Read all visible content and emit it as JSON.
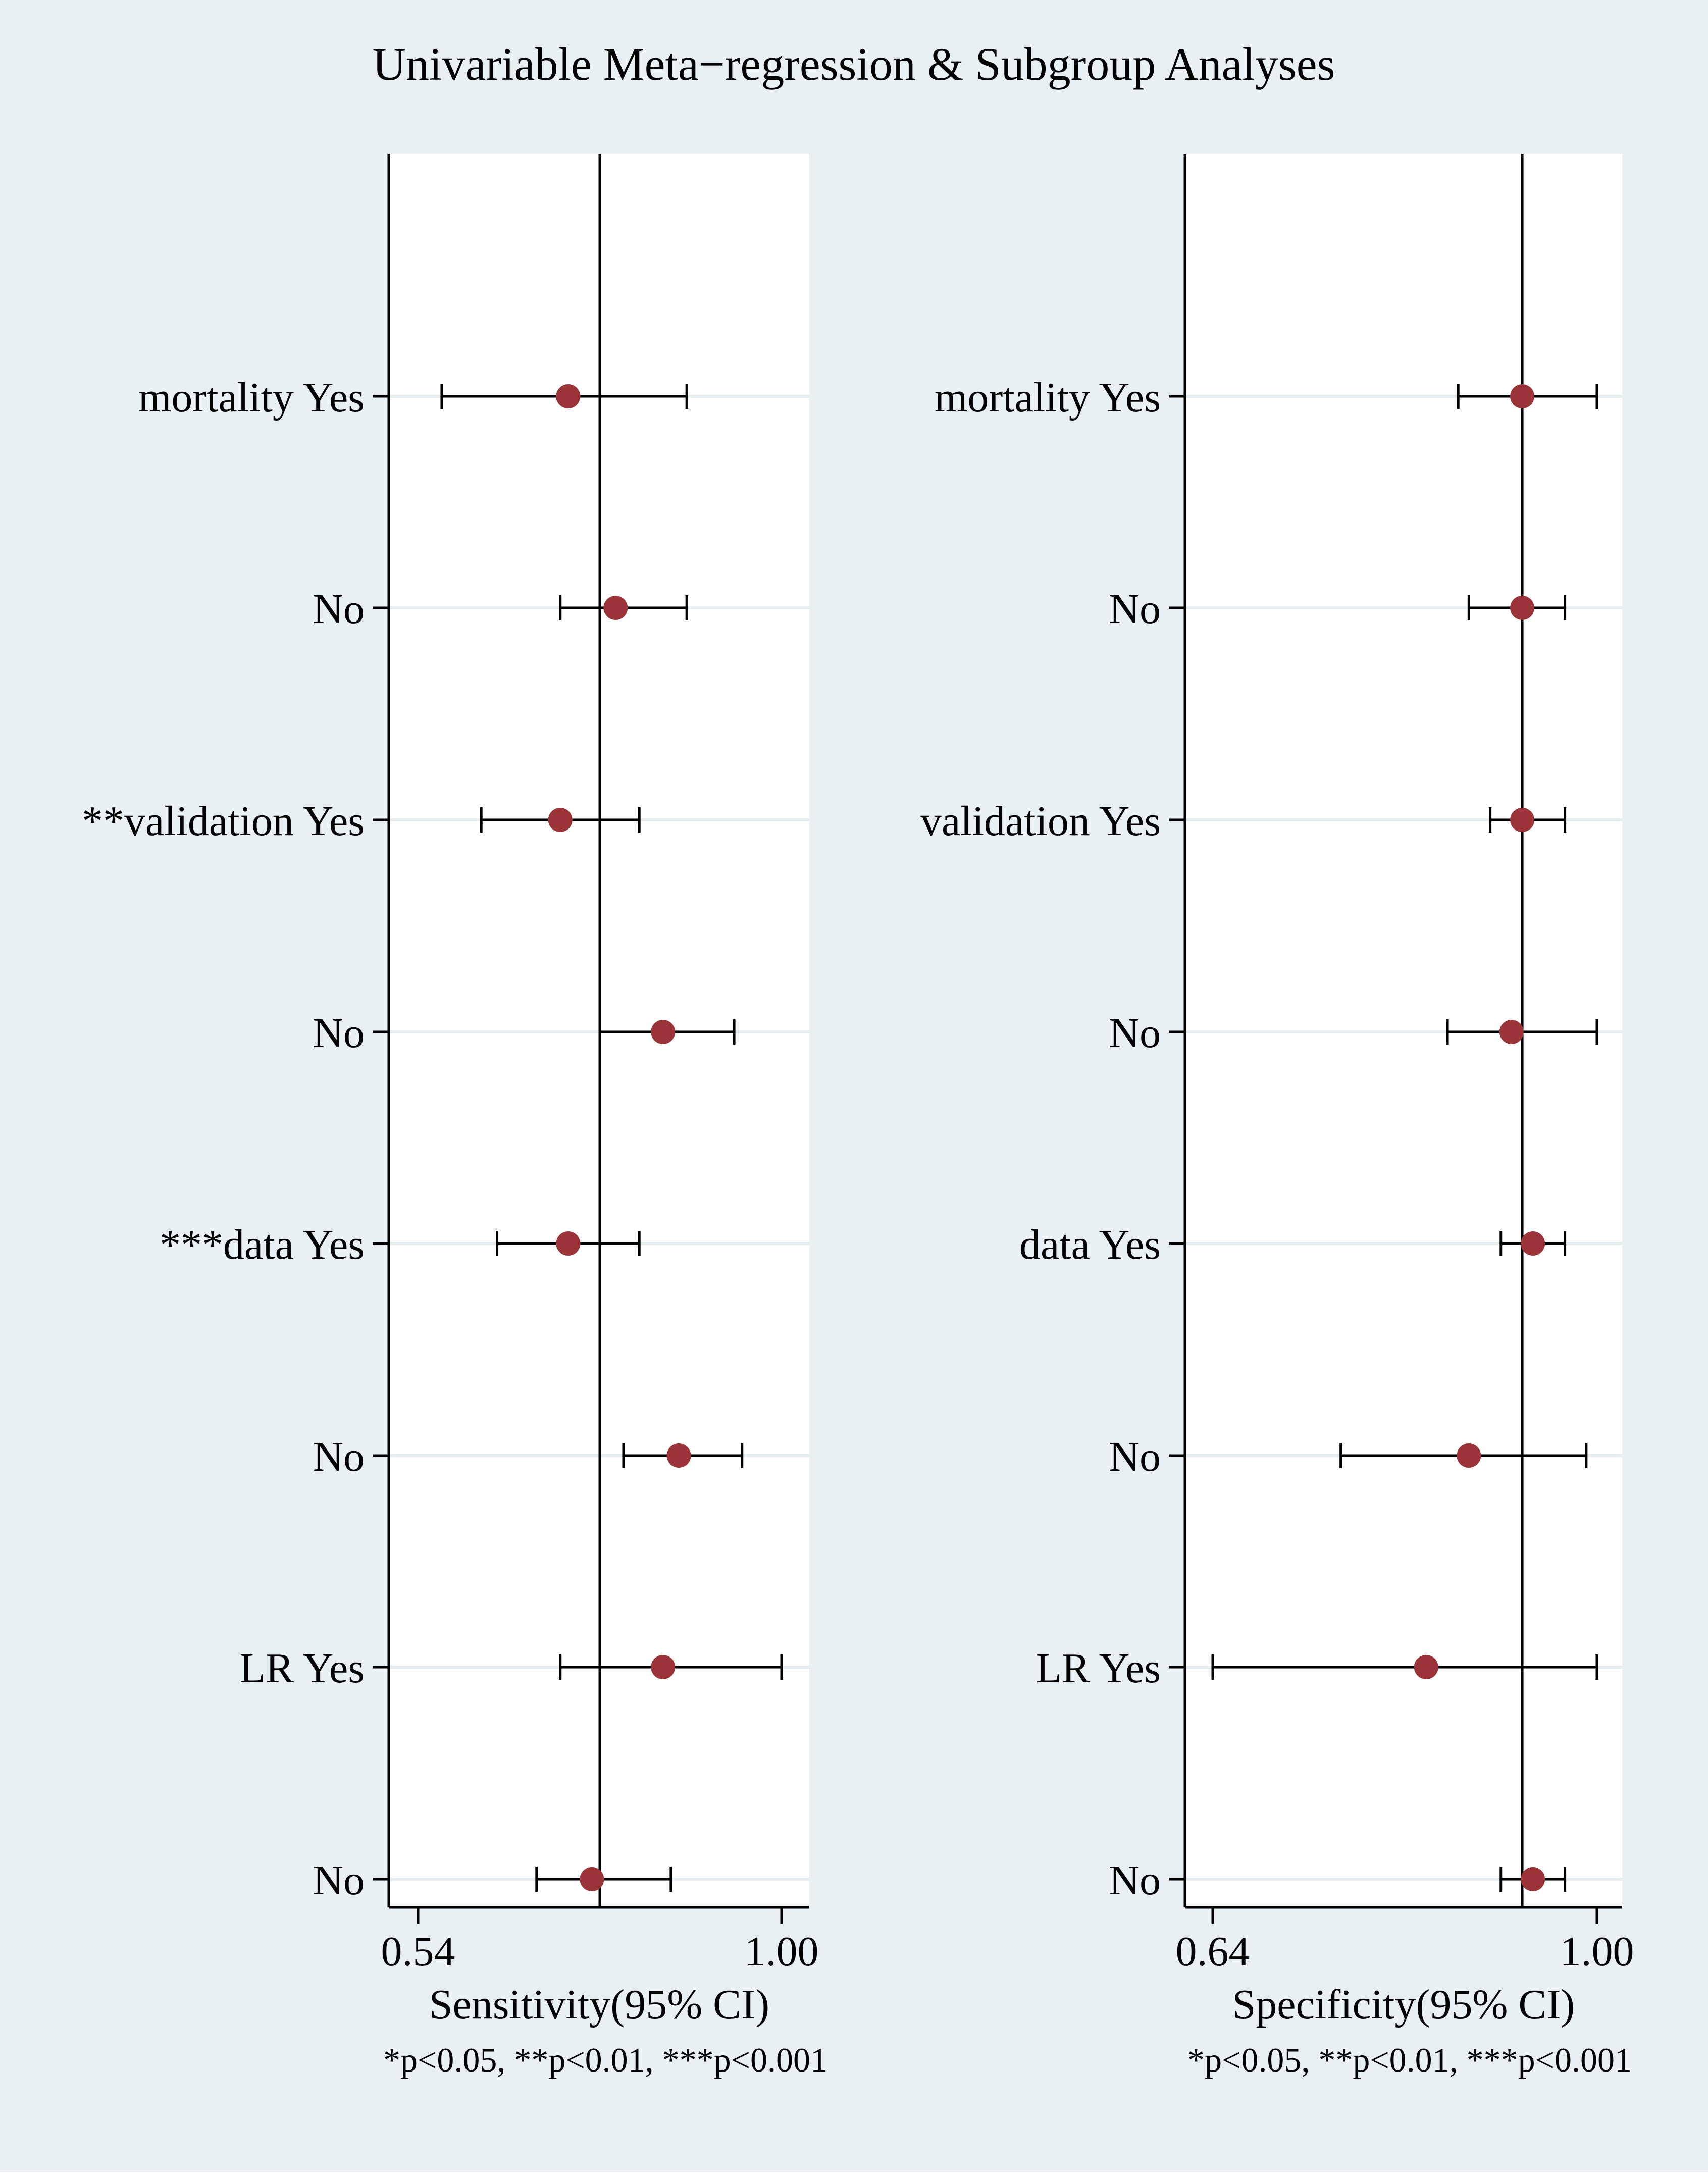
{
  "title": "Univariable Meta−regression & Subgroup Analyses",
  "colors": {
    "outer_background": "#e8f0f3",
    "plot_background": "#ffffff",
    "marker": "#9a3438",
    "gridline": "#e6eef1",
    "line": "#000000"
  },
  "chart_data": [
    {
      "type": "forest",
      "xlabel": "Sensitivity(95% CI)",
      "footnote": "*p<0.05, **p<0.01, ***p<0.001",
      "xlim": [
        0.54,
        1.0
      ],
      "tick_labels": [
        "0.54",
        "1.00"
      ],
      "reference_line": 0.77,
      "grid": "horizontal",
      "rows": [
        {
          "label": "mortality Yes",
          "estimate": 0.73,
          "lower": 0.57,
          "upper": 0.88
        },
        {
          "label": "No",
          "estimate": 0.79,
          "lower": 0.72,
          "upper": 0.88
        },
        {
          "label": "**validation Yes",
          "estimate": 0.72,
          "lower": 0.62,
          "upper": 0.82
        },
        {
          "label": "No",
          "estimate": 0.85,
          "lower": 0.77,
          "upper": 0.94
        },
        {
          "label": "***data Yes",
          "estimate": 0.73,
          "lower": 0.64,
          "upper": 0.82
        },
        {
          "label": "No",
          "estimate": 0.87,
          "lower": 0.8,
          "upper": 0.95
        },
        {
          "label": "LR Yes",
          "estimate": 0.85,
          "lower": 0.72,
          "upper": 1.0
        },
        {
          "label": "No",
          "estimate": 0.76,
          "lower": 0.69,
          "upper": 0.86
        }
      ]
    },
    {
      "type": "forest",
      "xlabel": "Specificity(95% CI)",
      "footnote": "*p<0.05, **p<0.01, ***p<0.001",
      "xlim": [
        0.64,
        1.0
      ],
      "tick_labels": [
        "0.64",
        "1.00"
      ],
      "reference_line": 0.93,
      "grid": "horizontal",
      "rows": [
        {
          "label": "mortality Yes",
          "estimate": 0.93,
          "lower": 0.87,
          "upper": 1.0
        },
        {
          "label": "No",
          "estimate": 0.93,
          "lower": 0.88,
          "upper": 0.97
        },
        {
          "label": "validation Yes",
          "estimate": 0.93,
          "lower": 0.9,
          "upper": 0.97
        },
        {
          "label": "No",
          "estimate": 0.92,
          "lower": 0.86,
          "upper": 1.0
        },
        {
          "label": "data Yes",
          "estimate": 0.94,
          "lower": 0.91,
          "upper": 0.97
        },
        {
          "label": "No",
          "estimate": 0.88,
          "lower": 0.76,
          "upper": 0.99
        },
        {
          "label": "LR Yes",
          "estimate": 0.84,
          "lower": 0.64,
          "upper": 1.0
        },
        {
          "label": "No",
          "estimate": 0.94,
          "lower": 0.91,
          "upper": 0.97
        }
      ]
    }
  ]
}
